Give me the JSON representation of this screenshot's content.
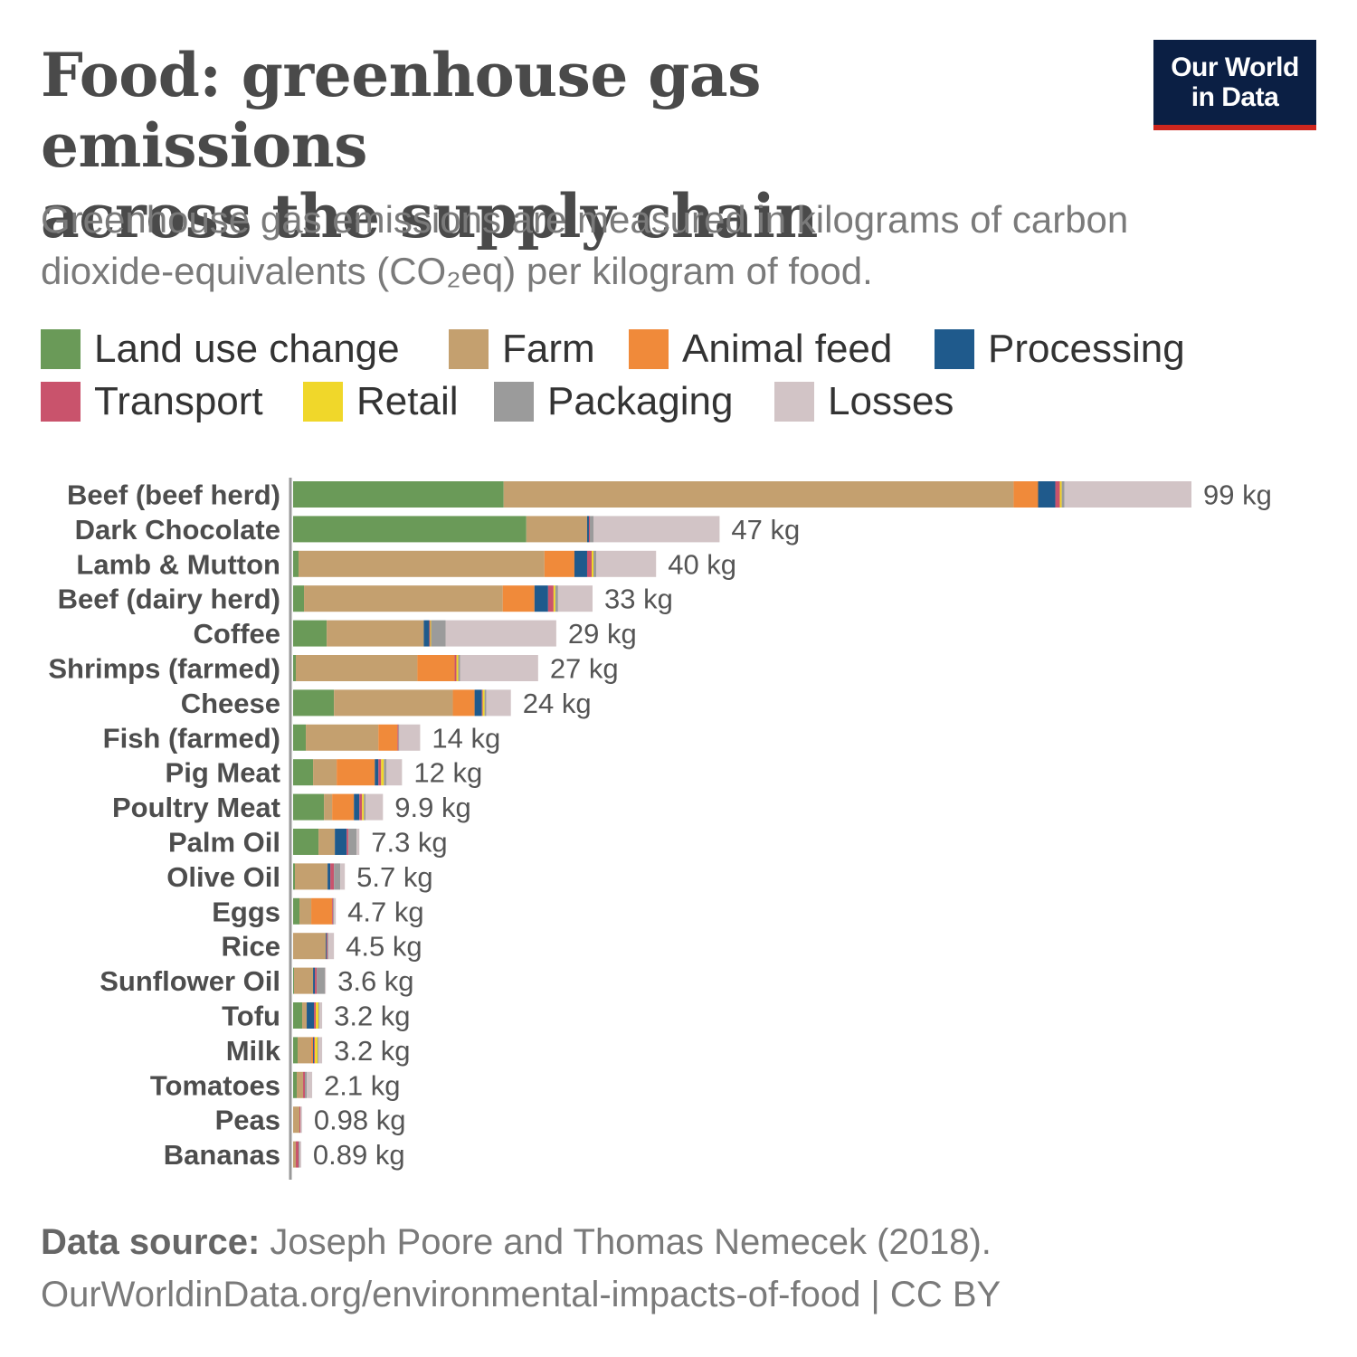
{
  "title_line1": "Food: greenhouse gas emissions",
  "title_line2": "across the supply chain",
  "subtitle_line1": "Greenhouse gas emissions are measured in kilograms of carbon",
  "subtitle_line2": "dioxide-equivalents (CO₂eq) per kilogram of food.",
  "logo_line1": "Our World",
  "logo_line2": "in Data",
  "colors": {
    "logo_bg": "#0b1f44",
    "logo_bar": "#ce261e"
  },
  "chart_data": {
    "type": "bar",
    "orientation": "horizontal",
    "stacked": true,
    "title": "Food: greenhouse gas emissions across the supply chain",
    "unit": "kg",
    "legend_placement": "top",
    "grid": false,
    "xlim": [
      0,
      99
    ],
    "legend": [
      {
        "name": "Land use change",
        "color": "#6a9a58"
      },
      {
        "name": "Farm",
        "color": "#c4a06f"
      },
      {
        "name": "Animal feed",
        "color": "#f08a3a"
      },
      {
        "name": "Processing",
        "color": "#1f5a8c"
      },
      {
        "name": "Transport",
        "color": "#c9536c"
      },
      {
        "name": "Retail",
        "color": "#f0d72a"
      },
      {
        "name": "Packaging",
        "color": "#9b9b9b"
      },
      {
        "name": "Losses",
        "color": "#d2c4c6"
      }
    ],
    "categories": [
      "Beef (beef herd)",
      "Dark Chocolate",
      "Lamb & Mutton",
      "Beef (dairy herd)",
      "Coffee",
      "Shrimps (farmed)",
      "Cheese",
      "Fish (farmed)",
      "Pig Meat",
      "Poultry Meat",
      "Palm Oil",
      "Olive Oil",
      "Eggs",
      "Rice",
      "Sunflower Oil",
      "Tofu",
      "Milk",
      "Tomatoes",
      "Peas",
      "Bananas"
    ],
    "totals": [
      99,
      47,
      40,
      33,
      29,
      27,
      24,
      14,
      12,
      9.9,
      7.3,
      5.7,
      4.7,
      4.5,
      3.6,
      3.2,
      3.2,
      2.1,
      0.98,
      0.89
    ],
    "total_labels": [
      "99 kg",
      "47 kg",
      "40 kg",
      "33 kg",
      "29 kg",
      "27 kg",
      "24 kg",
      "14 kg",
      "12 kg",
      "9.9 kg",
      "7.3 kg",
      "5.7 kg",
      "4.7 kg",
      "4.5 kg",
      "3.6 kg",
      "3.2 kg",
      "3.2 kg",
      "2.1 kg",
      "0.98 kg",
      "0.89 kg"
    ],
    "series": [
      {
        "name": "Land use change",
        "values": [
          23.2,
          25.7,
          0.6,
          1.2,
          3.7,
          0.3,
          4.5,
          1.4,
          2.2,
          3.4,
          2.8,
          0.2,
          0.7,
          0.0,
          0.1,
          1.0,
          0.5,
          0.4,
          0.0,
          0.0
        ]
      },
      {
        "name": "Farm",
        "values": [
          56.2,
          6.7,
          27.1,
          21.9,
          10.7,
          13.4,
          13.1,
          8.0,
          2.6,
          0.9,
          1.8,
          3.6,
          1.3,
          3.6,
          2.1,
          0.5,
          1.5,
          0.7,
          0.7,
          0.3
        ]
      },
      {
        "name": "Animal feed",
        "values": [
          2.7,
          0.0,
          3.3,
          3.5,
          0.0,
          4.1,
          2.4,
          2.1,
          4.2,
          2.4,
          0.0,
          0.0,
          2.3,
          0.0,
          0.0,
          0.0,
          0.2,
          0.0,
          0.0,
          0.0
        ]
      },
      {
        "name": "Processing",
        "values": [
          1.9,
          0.2,
          1.4,
          1.5,
          0.6,
          0.0,
          0.8,
          0.0,
          0.4,
          0.6,
          1.3,
          0.3,
          0.0,
          0.1,
          0.2,
          0.8,
          0.1,
          0.0,
          0.0,
          0.0
        ]
      },
      {
        "name": "Transport",
        "values": [
          0.5,
          0.1,
          0.5,
          0.6,
          0.1,
          0.2,
          0.1,
          0.1,
          0.3,
          0.3,
          0.2,
          0.4,
          0.1,
          0.1,
          0.2,
          0.2,
          0.1,
          0.2,
          0.1,
          0.3
        ]
      },
      {
        "name": "Retail",
        "values": [
          0.2,
          0.0,
          0.2,
          0.2,
          0.1,
          0.2,
          0.2,
          0.0,
          0.3,
          0.2,
          0.0,
          0.0,
          0.0,
          0.0,
          0.0,
          0.3,
          0.3,
          0.0,
          0.0,
          0.0
        ]
      },
      {
        "name": "Packaging",
        "values": [
          0.3,
          0.4,
          0.3,
          0.3,
          1.6,
          0.2,
          0.2,
          0.1,
          0.3,
          0.2,
          0.9,
          0.7,
          0.1,
          0.1,
          0.9,
          0.1,
          0.1,
          0.2,
          0.0,
          0.1
        ]
      },
      {
        "name": "Losses",
        "values": [
          14.0,
          13.9,
          6.6,
          3.8,
          12.2,
          8.6,
          2.7,
          2.3,
          1.7,
          1.9,
          0.3,
          0.5,
          0.2,
          0.6,
          0.1,
          0.3,
          0.4,
          0.6,
          0.18,
          0.19
        ]
      }
    ]
  },
  "source_label": "Data source:",
  "source_text": " Joseph Poore and Thomas Nemecek (2018).",
  "source_url": "OurWorldinData.org/environmental-impacts-of-food | CC BY"
}
